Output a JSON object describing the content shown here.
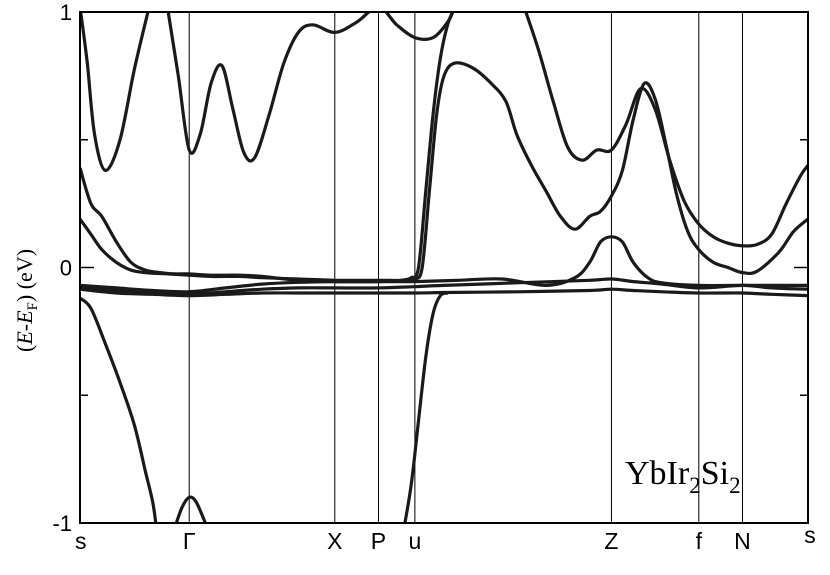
{
  "chart_data": {
    "type": "line",
    "title": "",
    "annotation": {
      "base": "YbIr",
      "sub1": "2",
      "mid": "Si",
      "sub2": "2"
    },
    "ylabel": {
      "prefix": "(",
      "e1": "E",
      "dash": "-",
      "e2": "E",
      "sub": "F",
      "suffix": ")  (eV)"
    },
    "ylim": [
      -1,
      1
    ],
    "xlim": [
      0,
      10
    ],
    "yticks": [
      {
        "value": 1,
        "label": "1"
      },
      {
        "value": 0,
        "label": "0"
      },
      {
        "value": -1,
        "label": "-1"
      }
    ],
    "kpoints": [
      {
        "x": 0,
        "label": "s"
      },
      {
        "x": 1.5,
        "label": "Γ"
      },
      {
        "x": 3.5,
        "label": "X"
      },
      {
        "x": 4.1,
        "label": "P"
      },
      {
        "x": 4.6,
        "label": "u"
      },
      {
        "x": 7.3,
        "label": "Z"
      },
      {
        "x": 8.5,
        "label": "f"
      },
      {
        "x": 9.1,
        "label": "N"
      },
      {
        "x": 10,
        "label": "s"
      }
    ],
    "series": [
      {
        "values": [
          [
            0,
            1.02
          ],
          [
            0.1,
            0.8
          ],
          [
            0.2,
            0.52
          ],
          [
            0.35,
            0.38
          ],
          [
            0.55,
            0.5
          ],
          [
            0.75,
            0.78
          ],
          [
            0.95,
            1.02
          ]
        ]
      },
      {
        "values": [
          [
            1.2,
            1.02
          ],
          [
            1.35,
            0.75
          ],
          [
            1.5,
            0.46
          ],
          [
            1.65,
            0.52
          ],
          [
            1.8,
            0.72
          ],
          [
            1.95,
            0.79
          ],
          [
            2.1,
            0.62
          ],
          [
            2.25,
            0.45
          ],
          [
            2.4,
            0.43
          ],
          [
            2.6,
            0.6
          ],
          [
            2.8,
            0.8
          ],
          [
            3.0,
            0.92
          ],
          [
            3.2,
            0.95
          ],
          [
            3.5,
            0.92
          ],
          [
            3.8,
            0.96
          ],
          [
            4.1,
            1.02
          ],
          [
            4.35,
            0.95
          ],
          [
            4.6,
            0.9
          ],
          [
            4.85,
            0.9
          ],
          [
            5.05,
            0.96
          ],
          [
            5.15,
            1.02
          ]
        ]
      },
      {
        "values": [
          [
            0,
            0.39
          ],
          [
            0.15,
            0.25
          ],
          [
            0.3,
            0.2
          ],
          [
            0.5,
            0.1
          ],
          [
            0.7,
            0.02
          ],
          [
            0.9,
            -0.01
          ],
          [
            1.1,
            -0.02
          ],
          [
            1.3,
            -0.025
          ],
          [
            1.5,
            -0.025
          ],
          [
            1.8,
            -0.03
          ],
          [
            2.2,
            -0.03
          ],
          [
            2.5,
            -0.035
          ],
          [
            3.0,
            -0.05
          ],
          [
            3.5,
            -0.055
          ],
          [
            4.1,
            -0.055
          ],
          [
            4.5,
            -0.05
          ],
          [
            4.6,
            -0.045
          ],
          [
            4.7,
            0.0
          ],
          [
            4.8,
            0.3
          ],
          [
            4.9,
            0.6
          ],
          [
            5.0,
            0.75
          ],
          [
            5.15,
            0.8
          ],
          [
            5.4,
            0.78
          ],
          [
            5.65,
            0.72
          ],
          [
            5.85,
            0.65
          ],
          [
            6.0,
            0.52
          ],
          [
            6.2,
            0.4
          ],
          [
            6.4,
            0.3
          ],
          [
            6.6,
            0.2
          ],
          [
            6.8,
            0.15
          ],
          [
            7.0,
            0.2
          ],
          [
            7.15,
            0.22
          ],
          [
            7.3,
            0.28
          ],
          [
            7.45,
            0.38
          ],
          [
            7.6,
            0.58
          ],
          [
            7.75,
            0.72
          ],
          [
            7.9,
            0.66
          ],
          [
            8.05,
            0.48
          ],
          [
            8.2,
            0.28
          ],
          [
            8.35,
            0.14
          ],
          [
            8.5,
            0.07
          ],
          [
            8.7,
            0.02
          ],
          [
            8.9,
            0.0
          ],
          [
            9.1,
            -0.02
          ],
          [
            9.3,
            -0.015
          ],
          [
            9.6,
            0.06
          ],
          [
            9.8,
            0.14
          ],
          [
            10,
            0.19
          ]
        ]
      },
      {
        "values": [
          [
            0,
            0.19
          ],
          [
            0.15,
            0.13
          ],
          [
            0.3,
            0.07
          ],
          [
            0.5,
            0.02
          ],
          [
            0.7,
            -0.01
          ],
          [
            0.9,
            -0.02
          ],
          [
            1.2,
            -0.025
          ],
          [
            1.5,
            -0.03
          ],
          [
            1.8,
            -0.035
          ],
          [
            2.2,
            -0.035
          ],
          [
            2.5,
            -0.04
          ],
          [
            3.0,
            -0.045
          ],
          [
            3.5,
            -0.05
          ],
          [
            4.1,
            -0.05
          ],
          [
            4.4,
            -0.05
          ],
          [
            4.55,
            -0.04
          ],
          [
            4.65,
            0.0
          ],
          [
            4.75,
            0.3
          ],
          [
            4.85,
            0.6
          ],
          [
            4.95,
            0.82
          ],
          [
            5.05,
            0.95
          ],
          [
            5.15,
            1.02
          ]
        ]
      },
      {
        "values": [
          [
            6.1,
            1.02
          ],
          [
            6.3,
            0.85
          ],
          [
            6.5,
            0.65
          ],
          [
            6.7,
            0.47
          ],
          [
            6.9,
            0.42
          ],
          [
            7.1,
            0.46
          ],
          [
            7.3,
            0.46
          ],
          [
            7.5,
            0.56
          ],
          [
            7.7,
            0.7
          ],
          [
            7.9,
            0.62
          ],
          [
            8.1,
            0.42
          ],
          [
            8.3,
            0.26
          ],
          [
            8.5,
            0.17
          ],
          [
            8.7,
            0.12
          ],
          [
            8.9,
            0.095
          ],
          [
            9.1,
            0.085
          ],
          [
            9.3,
            0.09
          ],
          [
            9.5,
            0.13
          ],
          [
            9.7,
            0.25
          ],
          [
            9.9,
            0.36
          ],
          [
            10,
            0.4
          ]
        ]
      },
      {
        "values": [
          [
            0,
            -0.07
          ],
          [
            0.5,
            -0.08
          ],
          [
            1.0,
            -0.09
          ],
          [
            1.5,
            -0.095
          ],
          [
            2.0,
            -0.08
          ],
          [
            2.5,
            -0.065
          ],
          [
            3.0,
            -0.058
          ],
          [
            3.5,
            -0.055
          ],
          [
            4.1,
            -0.055
          ],
          [
            4.6,
            -0.055
          ],
          [
            5.2,
            -0.05
          ],
          [
            5.8,
            -0.045
          ],
          [
            6.4,
            -0.07
          ],
          [
            6.8,
            -0.04
          ],
          [
            7.0,
            0.02
          ],
          [
            7.15,
            0.1
          ],
          [
            7.3,
            0.12
          ],
          [
            7.45,
            0.1
          ],
          [
            7.6,
            0.02
          ],
          [
            7.8,
            -0.04
          ],
          [
            8.0,
            -0.06
          ],
          [
            8.5,
            -0.07
          ],
          [
            9.1,
            -0.07
          ],
          [
            10,
            -0.07
          ]
        ]
      },
      {
        "values": [
          [
            0,
            -0.075
          ],
          [
            0.5,
            -0.09
          ],
          [
            1.0,
            -0.1
          ],
          [
            1.5,
            -0.105
          ],
          [
            2.0,
            -0.095
          ],
          [
            2.5,
            -0.085
          ],
          [
            3.0,
            -0.08
          ],
          [
            3.5,
            -0.08
          ],
          [
            4.1,
            -0.08
          ],
          [
            4.6,
            -0.075
          ],
          [
            5.0,
            -0.07
          ],
          [
            6.0,
            -0.06
          ],
          [
            7.0,
            -0.05
          ],
          [
            7.3,
            -0.045
          ],
          [
            7.6,
            -0.055
          ],
          [
            8.0,
            -0.065
          ],
          [
            8.5,
            -0.08
          ],
          [
            9.1,
            -0.07
          ],
          [
            9.5,
            -0.08
          ],
          [
            10,
            -0.085
          ]
        ]
      },
      {
        "values": [
          [
            0,
            -0.085
          ],
          [
            0.5,
            -0.1
          ],
          [
            1.0,
            -0.105
          ],
          [
            1.5,
            -0.11
          ],
          [
            2.0,
            -0.105
          ],
          [
            2.5,
            -0.1
          ],
          [
            3.0,
            -0.1
          ],
          [
            3.5,
            -0.1
          ],
          [
            4.1,
            -0.1
          ],
          [
            4.6,
            -0.1
          ],
          [
            5.0,
            -0.098
          ],
          [
            6.0,
            -0.095
          ],
          [
            7.0,
            -0.09
          ],
          [
            7.3,
            -0.085
          ],
          [
            7.6,
            -0.09
          ],
          [
            8.0,
            -0.095
          ],
          [
            8.5,
            -0.1
          ],
          [
            9.1,
            -0.1
          ],
          [
            9.5,
            -0.105
          ],
          [
            10,
            -0.11
          ]
        ]
      },
      {
        "values": [
          [
            0,
            -0.12
          ],
          [
            0.15,
            -0.16
          ],
          [
            0.35,
            -0.3
          ],
          [
            0.55,
            -0.45
          ],
          [
            0.75,
            -0.62
          ],
          [
            0.9,
            -0.8
          ],
          [
            1.0,
            -0.92
          ],
          [
            1.05,
            -1.02
          ]
        ]
      },
      {
        "values": [
          [
            1.3,
            -1.02
          ],
          [
            1.4,
            -0.94
          ],
          [
            1.5,
            -0.9
          ],
          [
            1.6,
            -0.92
          ],
          [
            1.75,
            -1.02
          ]
        ]
      },
      {
        "values": [
          [
            4.45,
            -1.02
          ],
          [
            4.55,
            -0.85
          ],
          [
            4.65,
            -0.6
          ],
          [
            4.75,
            -0.35
          ],
          [
            4.85,
            -0.18
          ],
          [
            4.95,
            -0.11
          ],
          [
            5.05,
            -0.1
          ]
        ]
      }
    ]
  }
}
